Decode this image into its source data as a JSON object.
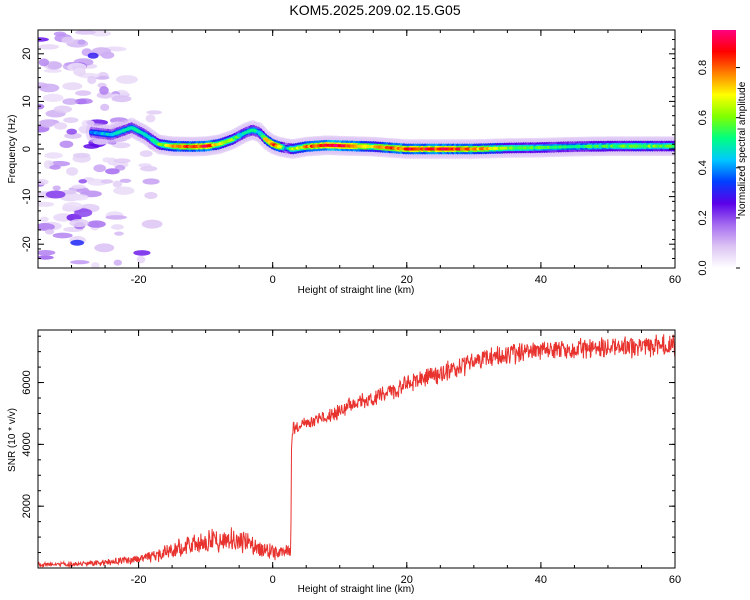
{
  "title": "KOM5.2025.209.02.15.G05",
  "chart_data": [
    {
      "type": "heatmap",
      "xlabel": "Height of straight line (km)",
      "ylabel": "Frequency (Hz)",
      "xlim": [
        -35,
        60
      ],
      "ylim": [
        -25,
        25
      ],
      "xticks": [
        -20,
        0,
        20,
        40,
        60
      ],
      "yticks": [
        -20,
        -10,
        0,
        10,
        20
      ],
      "colorbar": {
        "label": "Normalized spectral amplitude",
        "range": [
          0,
          0.95
        ],
        "ticks": [
          0.0,
          0.2,
          0.4,
          0.6,
          0.8
        ],
        "colormap": [
          "#ffffff",
          "#dcc4f4",
          "#a56cf0",
          "#5a00e8",
          "#0040ff",
          "#00c8ff",
          "#00ff80",
          "#80ff00",
          "#ffff00",
          "#ff8000",
          "#ff0000",
          "#ff0080"
        ]
      },
      "ridge": {
        "x": [
          -27,
          -24,
          -21,
          -19,
          -17,
          -15,
          -12,
          -10,
          -8,
          -6,
          -4,
          -3,
          -2,
          -1,
          0,
          1,
          2,
          3,
          5,
          8,
          10,
          15,
          20,
          25,
          30,
          35,
          40,
          45,
          50,
          55,
          60
        ],
        "freq": [
          3.5,
          3,
          4.5,
          3,
          1,
          0.6,
          0.5,
          0.6,
          1,
          2,
          3.5,
          4,
          3.5,
          2,
          1,
          0.5,
          0.2,
          0,
          0.5,
          0.8,
          0.7,
          0.5,
          0,
          0,
          0,
          0.2,
          0.3,
          0.5,
          0.6,
          0.6,
          0.6
        ],
        "amplitude": [
          0.4,
          0.45,
          0.5,
          0.45,
          0.55,
          0.75,
          0.8,
          0.88,
          0.7,
          0.6,
          0.45,
          0.5,
          0.45,
          0.7,
          0.85,
          0.75,
          0.4,
          0.6,
          0.75,
          0.9,
          0.92,
          0.7,
          0.85,
          0.85,
          0.8,
          0.6,
          0.55,
          0.5,
          0.55,
          0.6,
          0.55
        ]
      },
      "noise_region_x": [
        -35,
        -17
      ]
    },
    {
      "type": "line",
      "xlabel": "Height of straight line (km)",
      "ylabel": "SNR (10 * v/v)",
      "xlim": [
        -35,
        60
      ],
      "ylim": [
        0,
        7700
      ],
      "xticks": [
        -20,
        0,
        20,
        40,
        60
      ],
      "yticks": [
        2000,
        4000,
        6000
      ],
      "series": [
        {
          "color": "#e8322e",
          "x": [
            -35,
            -30,
            -25,
            -20,
            -17,
            -15,
            -12,
            -10,
            -8,
            -6,
            -4,
            -2,
            0,
            2,
            2.7,
            2.8,
            3,
            5,
            8,
            10,
            12,
            15,
            18,
            20,
            22,
            25,
            28,
            30,
            33,
            35,
            38,
            40,
            45,
            50,
            55,
            58,
            60
          ],
          "y": [
            100,
            120,
            180,
            300,
            400,
            600,
            800,
            850,
            900,
            950,
            800,
            650,
            500,
            500,
            500,
            4000,
            4500,
            4700,
            4900,
            5100,
            5300,
            5500,
            5700,
            6000,
            6100,
            6300,
            6500,
            6700,
            6850,
            6900,
            7000,
            7050,
            7100,
            7150,
            7150,
            7200,
            7200
          ]
        }
      ]
    }
  ]
}
